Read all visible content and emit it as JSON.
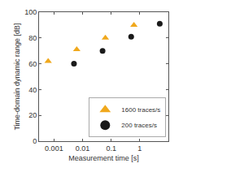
{
  "chart_data": {
    "type": "scatter",
    "x_label": "Measurement time [s]",
    "y_label": "Time-domain dynamic range [dB]",
    "log": "x",
    "grid": false,
    "legend": "lower right",
    "xlim": [
      0.0003,
      10
    ],
    "xticks": [
      0.001,
      0.01,
      0.1,
      1
    ],
    "ylim": [
      0,
      100
    ],
    "yticks": [
      0,
      20,
      40,
      60,
      80,
      100
    ],
    "series": [
      {
        "name": "1600 traces/s",
        "color": "#f0a81c",
        "marker": "triangle-up",
        "x": [
          0.000625,
          0.00625,
          0.0625,
          0.625
        ],
        "values": [
          62,
          71,
          80,
          90
        ]
      },
      {
        "name": "200 traces/s",
        "color": "#1a1a1a",
        "marker": "circle",
        "x": [
          0.005,
          0.05,
          0.5,
          5
        ],
        "values": [
          60,
          70,
          81,
          91
        ]
      }
    ]
  }
}
